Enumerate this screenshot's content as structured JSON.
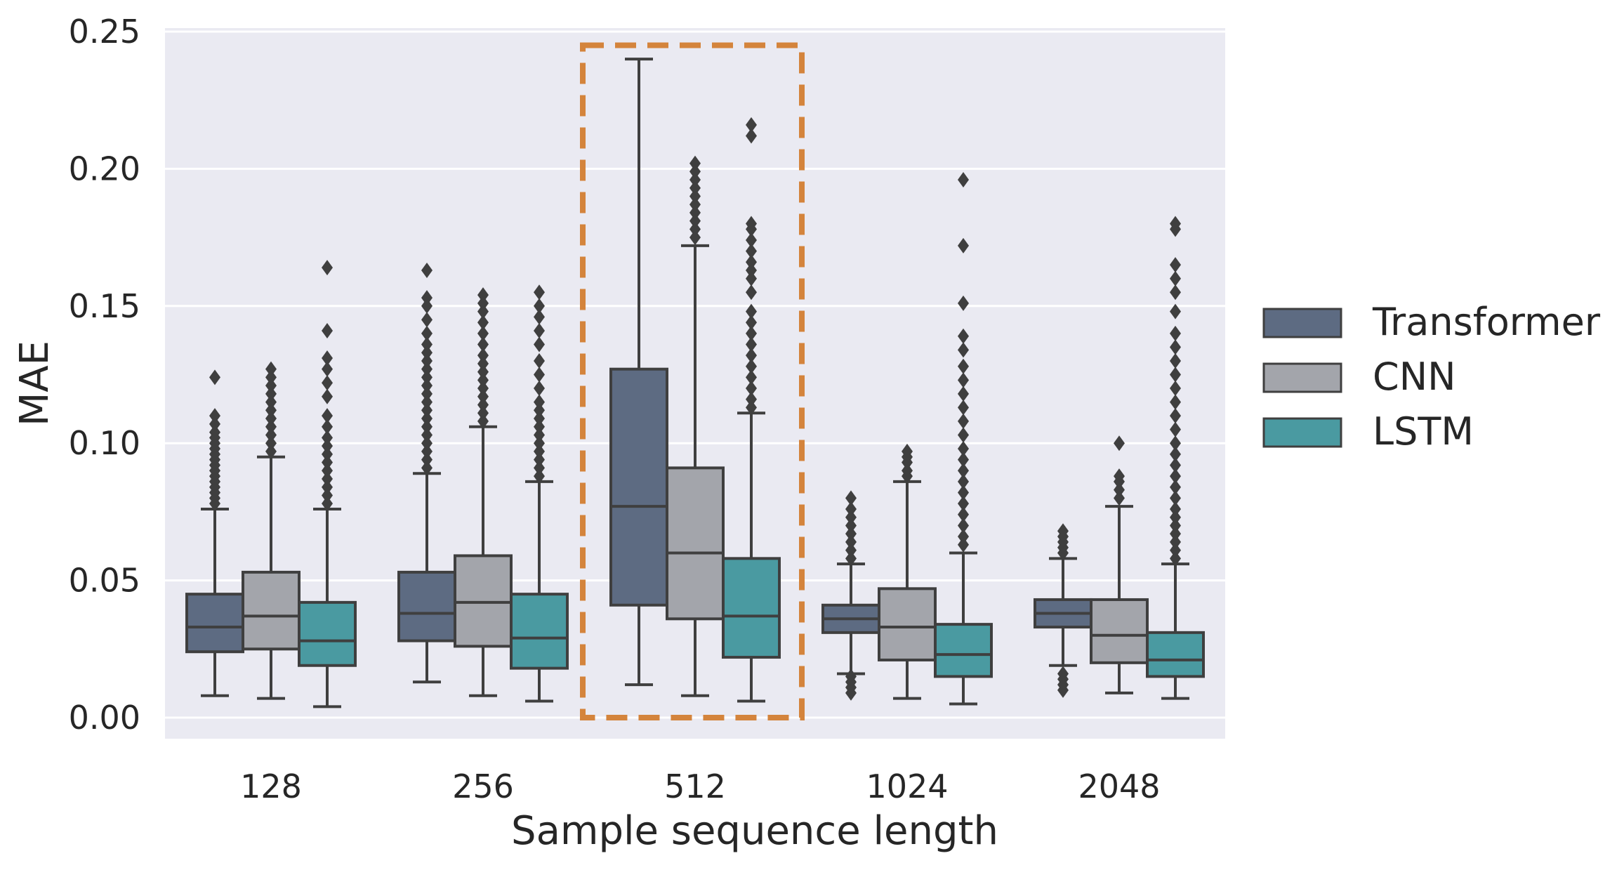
{
  "chart_data": {
    "type": "boxplot",
    "title": "",
    "xlabel": "Sample sequence length",
    "ylabel": "MAE",
    "ylim": [
      -0.007,
      0.25
    ],
    "yticks": [
      "0.00",
      "0.05",
      "0.10",
      "0.15",
      "0.20",
      "0.25"
    ],
    "categories": [
      "128",
      "256",
      "512",
      "1024",
      "2048"
    ],
    "highlight": {
      "category": "512",
      "color": "#d4843c",
      "y_range": [
        0.0,
        0.245
      ]
    },
    "series": [
      {
        "name": "Transformer",
        "color": "#5d6b82",
        "boxes": [
          {
            "whisker_low": 0.008,
            "q1": 0.024,
            "median": 0.033,
            "q3": 0.045,
            "whisker_high": 0.076,
            "outliers": [
              0.078,
              0.08,
              0.082,
              0.084,
              0.086,
              0.088,
              0.09,
              0.092,
              0.094,
              0.096,
              0.098,
              0.1,
              0.102,
              0.104,
              0.107,
              0.11,
              0.124
            ]
          },
          {
            "whisker_low": 0.013,
            "q1": 0.028,
            "median": 0.038,
            "q3": 0.053,
            "whisker_high": 0.089,
            "outliers": [
              0.091,
              0.094,
              0.097,
              0.1,
              0.103,
              0.106,
              0.109,
              0.112,
              0.115,
              0.118,
              0.121,
              0.124,
              0.127,
              0.13,
              0.133,
              0.136,
              0.14,
              0.145,
              0.15,
              0.153,
              0.163
            ]
          },
          {
            "whisker_low": 0.012,
            "q1": 0.041,
            "median": 0.077,
            "q3": 0.127,
            "whisker_high": 0.24,
            "outliers": []
          },
          {
            "whisker_low": 0.016,
            "q1": 0.031,
            "median": 0.036,
            "q3": 0.041,
            "whisker_high": 0.056,
            "outliers": [
              0.009,
              0.011,
              0.013,
              0.015,
              0.058,
              0.061,
              0.064,
              0.067,
              0.07,
              0.073,
              0.076,
              0.08
            ]
          },
          {
            "whisker_low": 0.019,
            "q1": 0.033,
            "median": 0.038,
            "q3": 0.043,
            "whisker_high": 0.058,
            "outliers": [
              0.01,
              0.012,
              0.014,
              0.016,
              0.06,
              0.062,
              0.064,
              0.066,
              0.068
            ]
          }
        ]
      },
      {
        "name": "CNN",
        "color": "#a3a5ab",
        "boxes": [
          {
            "whisker_low": 0.007,
            "q1": 0.025,
            "median": 0.037,
            "q3": 0.053,
            "whisker_high": 0.095,
            "outliers": [
              0.097,
              0.1,
              0.103,
              0.106,
              0.109,
              0.112,
              0.115,
              0.118,
              0.121,
              0.124,
              0.127
            ]
          },
          {
            "whisker_low": 0.008,
            "q1": 0.026,
            "median": 0.042,
            "q3": 0.059,
            "whisker_high": 0.106,
            "outliers": [
              0.108,
              0.111,
              0.114,
              0.117,
              0.12,
              0.123,
              0.126,
              0.129,
              0.132,
              0.136,
              0.14,
              0.144,
              0.148,
              0.151,
              0.154
            ]
          },
          {
            "whisker_low": 0.008,
            "q1": 0.036,
            "median": 0.06,
            "q3": 0.091,
            "whisker_high": 0.172,
            "outliers": [
              0.175,
              0.178,
              0.181,
              0.184,
              0.187,
              0.19,
              0.193,
              0.196,
              0.199,
              0.202
            ]
          },
          {
            "whisker_low": 0.007,
            "q1": 0.021,
            "median": 0.033,
            "q3": 0.047,
            "whisker_high": 0.086,
            "outliers": [
              0.088,
              0.09,
              0.093,
              0.095,
              0.097
            ]
          },
          {
            "whisker_low": 0.009,
            "q1": 0.02,
            "median": 0.03,
            "q3": 0.043,
            "whisker_high": 0.077,
            "outliers": [
              0.08,
              0.083,
              0.086,
              0.088,
              0.1
            ]
          }
        ]
      },
      {
        "name": "LSTM",
        "color": "#4a9aa1",
        "boxes": [
          {
            "whisker_low": 0.004,
            "q1": 0.019,
            "median": 0.028,
            "q3": 0.042,
            "whisker_high": 0.076,
            "outliers": [
              0.078,
              0.081,
              0.084,
              0.087,
              0.09,
              0.093,
              0.096,
              0.099,
              0.102,
              0.106,
              0.11,
              0.117,
              0.122,
              0.127,
              0.131,
              0.141,
              0.164
            ]
          },
          {
            "whisker_low": 0.006,
            "q1": 0.018,
            "median": 0.029,
            "q3": 0.045,
            "whisker_high": 0.086,
            "outliers": [
              0.088,
              0.091,
              0.094,
              0.097,
              0.1,
              0.103,
              0.106,
              0.109,
              0.112,
              0.115,
              0.12,
              0.125,
              0.13,
              0.136,
              0.141,
              0.146,
              0.15,
              0.155
            ]
          },
          {
            "whisker_low": 0.006,
            "q1": 0.022,
            "median": 0.037,
            "q3": 0.058,
            "whisker_high": 0.111,
            "outliers": [
              0.113,
              0.116,
              0.12,
              0.124,
              0.128,
              0.132,
              0.136,
              0.14,
              0.144,
              0.148,
              0.155,
              0.16,
              0.163,
              0.166,
              0.17,
              0.174,
              0.178,
              0.18,
              0.212,
              0.216
            ]
          },
          {
            "whisker_low": 0.005,
            "q1": 0.015,
            "median": 0.023,
            "q3": 0.034,
            "whisker_high": 0.06,
            "outliers": [
              0.063,
              0.066,
              0.07,
              0.074,
              0.078,
              0.082,
              0.086,
              0.09,
              0.094,
              0.098,
              0.103,
              0.108,
              0.113,
              0.118,
              0.123,
              0.128,
              0.134,
              0.139,
              0.151,
              0.172,
              0.196
            ]
          },
          {
            "whisker_low": 0.007,
            "q1": 0.015,
            "median": 0.021,
            "q3": 0.031,
            "whisker_high": 0.056,
            "outliers": [
              0.058,
              0.061,
              0.064,
              0.067,
              0.07,
              0.073,
              0.076,
              0.08,
              0.084,
              0.088,
              0.092,
              0.096,
              0.1,
              0.105,
              0.11,
              0.115,
              0.12,
              0.125,
              0.13,
              0.135,
              0.14,
              0.148,
              0.155,
              0.16,
              0.165,
              0.178,
              0.18
            ]
          }
        ]
      }
    ],
    "legend": {
      "position": "right",
      "labels": [
        "Transformer",
        "CNN",
        "LSTM"
      ]
    },
    "grid": true
  }
}
